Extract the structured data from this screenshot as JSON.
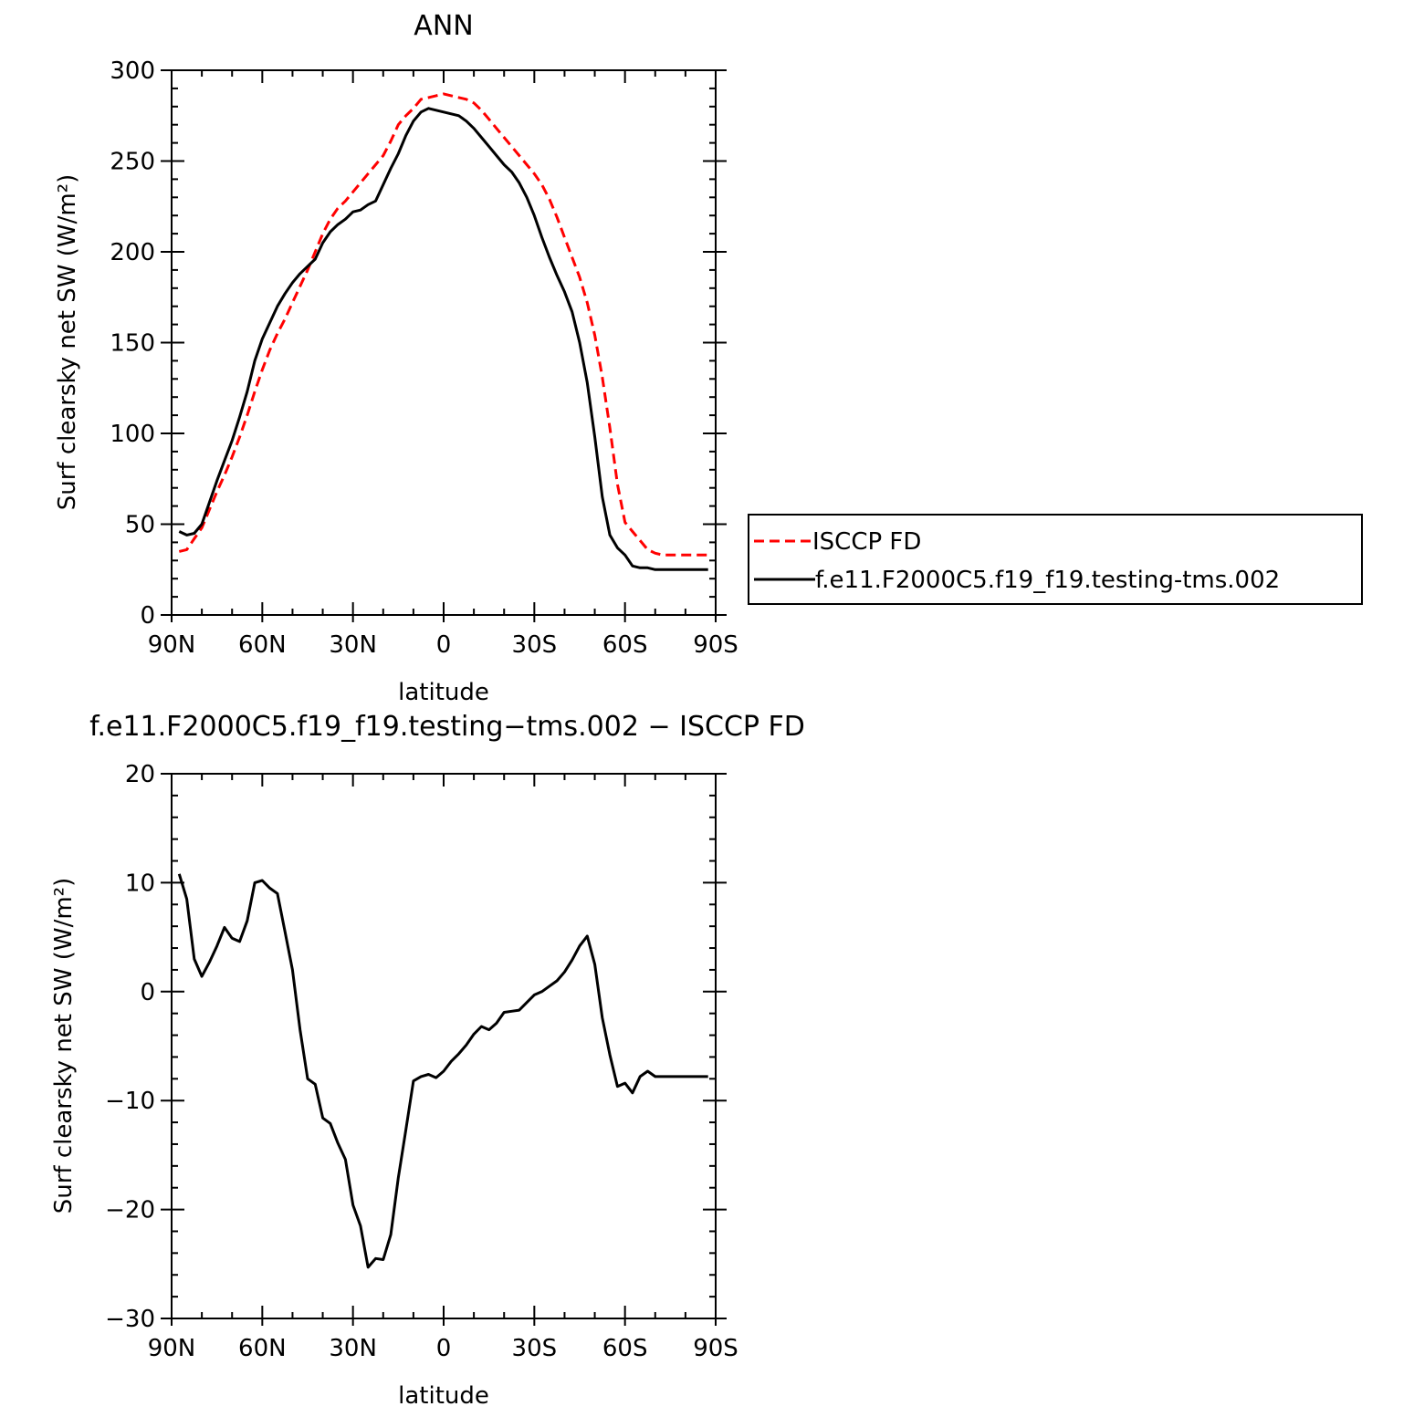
{
  "chart_data": [
    {
      "type": "line",
      "title": "ANN",
      "xlabel": "latitude",
      "ylabel": "Surf clearsky net SW (W/m²)",
      "xlim": [
        90,
        -90
      ],
      "ylim": [
        0,
        300
      ],
      "x_ticks": [
        90,
        60,
        30,
        0,
        -30,
        -60,
        -90
      ],
      "x_tick_labels": [
        "90N",
        "60N",
        "30N",
        "0",
        "30S",
        "60S",
        "90S"
      ],
      "y_ticks": [
        0,
        50,
        100,
        150,
        200,
        250,
        300
      ],
      "y_tick_labels": [
        "0",
        "50",
        "100",
        "150",
        "200",
        "250",
        "300"
      ],
      "legend_position": "right",
      "series": [
        {
          "name": "ISCCP FD",
          "color": "#ff0000",
          "style": "dashed",
          "x": [
            87.5,
            85,
            82.5,
            80,
            77.5,
            75,
            72.5,
            70,
            67.5,
            65,
            62.5,
            60,
            57.5,
            55,
            52.5,
            50,
            47.5,
            45,
            42.5,
            40,
            37.5,
            35,
            32.5,
            30,
            27.5,
            25,
            22.5,
            20,
            17.5,
            15,
            12.5,
            10,
            7.5,
            5,
            2.5,
            0,
            -2.5,
            -5,
            -7.5,
            -10,
            -12.5,
            -15,
            -17.5,
            -20,
            -22.5,
            -25,
            -27.5,
            -30,
            -32.5,
            -35,
            -37.5,
            -40,
            -42.5,
            -45,
            -47.5,
            -50,
            -52.5,
            -55,
            -57.5,
            -60,
            -62.5,
            -65,
            -67.5,
            -70,
            -72.5,
            -75,
            -77.5,
            -80,
            -82.5,
            -85,
            -87.5
          ],
          "values": [
            35,
            36,
            42,
            48,
            58,
            68,
            77,
            87,
            98,
            110,
            123,
            135,
            146,
            155,
            163,
            172,
            181,
            190,
            200,
            210,
            218,
            224,
            228,
            233,
            238,
            243,
            248,
            253,
            261,
            270,
            275,
            279,
            284,
            285,
            286,
            287,
            286,
            285,
            284,
            282,
            278,
            273,
            268,
            263,
            258,
            253,
            248,
            243,
            237,
            229,
            219,
            208,
            197,
            186,
            172,
            154,
            131,
            103,
            72,
            51,
            46,
            41,
            36,
            34,
            33,
            33,
            33,
            33,
            33,
            33,
            33
          ]
        },
        {
          "name": "f.e11.F2000C5.f19_f19.testing-tms.002",
          "color": "#000000",
          "style": "solid",
          "x": [
            87.5,
            85,
            82.5,
            80,
            77.5,
            75,
            72.5,
            70,
            67.5,
            65,
            62.5,
            60,
            57.5,
            55,
            52.5,
            50,
            47.5,
            45,
            42.5,
            40,
            37.5,
            35,
            32.5,
            30,
            27.5,
            25,
            22.5,
            20,
            17.5,
            15,
            12.5,
            10,
            7.5,
            5,
            2.5,
            0,
            -2.5,
            -5,
            -7.5,
            -10,
            -12.5,
            -15,
            -17.5,
            -20,
            -22.5,
            -25,
            -27.5,
            -30,
            -32.5,
            -35,
            -37.5,
            -40,
            -42.5,
            -45,
            -47.5,
            -50,
            -52.5,
            -55,
            -57.5,
            -60,
            -62.5,
            -65,
            -67.5,
            -70,
            -72.5,
            -75,
            -77.5,
            -80,
            -82.5,
            -85,
            -87.5
          ],
          "values": [
            46,
            44,
            45,
            50,
            62,
            74,
            85,
            96,
            109,
            123,
            140,
            152,
            161,
            170,
            177,
            183,
            188,
            192,
            196,
            205,
            211,
            215,
            218,
            222,
            223,
            226,
            228,
            237,
            246,
            254,
            264,
            272,
            277,
            279,
            278,
            277,
            276,
            275,
            272,
            268,
            263,
            258,
            253,
            248,
            244,
            238,
            230,
            220,
            208,
            197,
            187,
            178,
            167,
            150,
            128,
            98,
            65,
            44,
            37,
            33,
            27,
            26,
            26,
            25,
            25,
            25,
            25,
            25,
            25,
            25,
            25
          ]
        }
      ]
    },
    {
      "type": "line",
      "title": "f.e11.F2000C5.f19_f19.testing−tms.002 − ISCCP FD",
      "xlabel": "latitude",
      "ylabel": "Surf clearsky net SW (W/m²)",
      "xlim": [
        90,
        -90
      ],
      "ylim": [
        -30,
        20
      ],
      "x_ticks": [
        90,
        60,
        30,
        0,
        -30,
        -60,
        -90
      ],
      "x_tick_labels": [
        "90N",
        "60N",
        "30N",
        "0",
        "30S",
        "60S",
        "90S"
      ],
      "y_ticks": [
        -30,
        -20,
        -10,
        0,
        10,
        20
      ],
      "y_tick_labels": [
        "−30",
        "−20",
        "−10",
        "0",
        "10",
        "20"
      ],
      "series": [
        {
          "color": "#000000",
          "style": "solid",
          "x": [
            87.5,
            85,
            82.5,
            80,
            77.5,
            75,
            72.5,
            70,
            67.5,
            65,
            62.5,
            60,
            57.5,
            55,
            52.5,
            50,
            47.5,
            45,
            42.5,
            40,
            37.5,
            35,
            32.5,
            30,
            27.5,
            25,
            22.5,
            20,
            17.5,
            15,
            12.5,
            10,
            7.5,
            5,
            2.5,
            0,
            -2.5,
            -5,
            -7.5,
            -10,
            -12.5,
            -15,
            -17.5,
            -20,
            -22.5,
            -25,
            -27.5,
            -30,
            -32.5,
            -35,
            -37.5,
            -40,
            -42.5,
            -45,
            -47.5,
            -50,
            -52.5,
            -55,
            -57.5,
            -60,
            -62.5,
            -65,
            -67.5,
            -70,
            -72.5,
            -75,
            -77.5,
            -80,
            -82.5,
            -85,
            -87.5
          ],
          "values": [
            10.8,
            8.5,
            3.0,
            1.4,
            2.7,
            4.2,
            5.9,
            4.9,
            4.6,
            6.5,
            10.0,
            10.2,
            9.5,
            9.0,
            5.5,
            2.0,
            -3.5,
            -8.0,
            -8.5,
            -11.6,
            -12.1,
            -13.9,
            -15.4,
            -19.6,
            -21.5,
            -25.3,
            -24.5,
            -24.6,
            -22.3,
            -17.1,
            -12.7,
            -8.2,
            -7.8,
            -7.6,
            -7.9,
            -7.3,
            -6.4,
            -5.7,
            -4.9,
            -3.9,
            -3.2,
            -3.5,
            -2.9,
            -1.9,
            -1.8,
            -1.7,
            -1.0,
            -0.3,
            0.0,
            0.5,
            1.0,
            1.8,
            2.9,
            4.2,
            5.1,
            2.5,
            -2.4,
            -5.8,
            -8.7,
            -8.4,
            -9.3,
            -7.8,
            -7.3,
            -7.8,
            -7.8,
            -7.8,
            -7.8,
            -7.8,
            -7.8,
            -7.8,
            -7.8
          ]
        }
      ]
    }
  ]
}
